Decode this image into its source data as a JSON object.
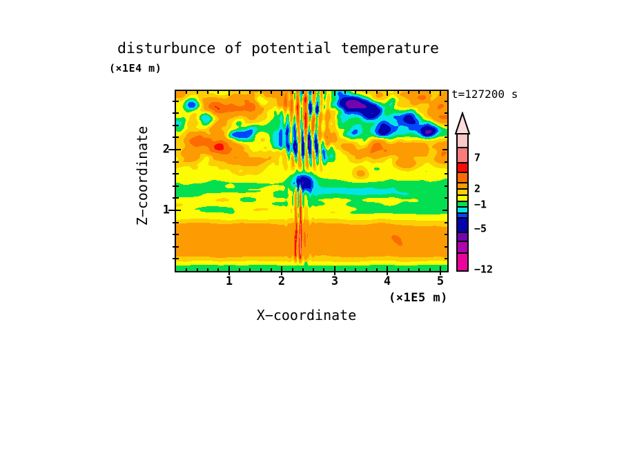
{
  "title": "disturbunce of potential temperature",
  "timestamp": "t=127200 s",
  "axes": {
    "x": {
      "label": "X−coordinate",
      "unit": "(×1E5 m)",
      "tick_labels": [
        "1",
        "2",
        "3",
        "4",
        "5"
      ]
    },
    "z": {
      "label": "Z−coordinate",
      "unit": "(×1E4 m)",
      "tick_labels": [
        "2",
        "1"
      ]
    }
  },
  "colorbar": {
    "labels": [
      "7",
      "2",
      "−1",
      "−5",
      "−12"
    ]
  },
  "chart_data": {
    "type": "heatmap",
    "variant": "filled-contour",
    "title": "disturbunce of potential temperature",
    "xlabel": "X−coordinate",
    "x_unit": "(×1E5 m)",
    "ylabel": "Z−coordinate",
    "y_unit": "(×1E4 m)",
    "time_label": "t=127200 s",
    "x_range": [
      0,
      5.13
    ],
    "z_range": [
      0,
      2.97
    ],
    "x_ticks": [
      1,
      2,
      3,
      4,
      5
    ],
    "z_ticks": [
      2,
      1
    ],
    "minor_tick_step": 0.2,
    "grid": false,
    "legend_position": "right",
    "contour_levels": [
      -12,
      -9,
      -7,
      -5,
      -3,
      -2,
      -1,
      0,
      1,
      2,
      4,
      5.5,
      7,
      10,
      13
    ],
    "palette": [
      "#eb049c",
      "#b004ae",
      "#7404ad",
      "#0404ae",
      "#0347fc",
      "#04e4e4",
      "#04df52",
      "#fcfc04",
      "#fccf04",
      "#fd9b02",
      "#fd6c03",
      "#fc0a06",
      "#f87c7c",
      "#fbc8c8"
    ],
    "colorbar_labels": [
      "7",
      "2",
      "−1",
      "−5",
      "−12"
    ],
    "field_summary": "Disturbance field at t=127200 s: thin green strip along the surface; broad yellow-to-orange layer for Z=0.1-0.8 with dark-orange cores; green band with cyan streaks for Z=0.9-1.4; yellow band near Z=1.5; strongly turbulent upper region (Z>1.6) mixing yellow, green, cyan, orange, red and navy blobs with occasional purple cores; a narrow vertical disturbance plume near X=2.3 with red/orange streaks below and a navy/purple knot at Z=1.45.",
    "field_model": {
      "profile": [
        [
          0,
          -0.6
        ],
        [
          0.07,
          -0.55
        ],
        [
          0.13,
          0.6
        ],
        [
          0.25,
          1.8
        ],
        [
          0.42,
          2.8
        ],
        [
          0.6,
          3.0
        ],
        [
          0.78,
          1.9
        ],
        [
          0.88,
          0.6
        ],
        [
          0.98,
          -0.2
        ],
        [
          1.3,
          -0.55
        ],
        [
          1.45,
          -0.1
        ],
        [
          1.58,
          0.55
        ],
        [
          1.75,
          0.85
        ],
        [
          2.97,
          0.85
        ]
      ],
      "wiggle": {
        "amp": 0.35,
        "sx": 2.3,
        "sz": 2.7,
        "seed": 91
      },
      "lower": {
        "z0": 0.14,
        "z1": 0.32,
        "z2": 0.58,
        "z3": 0.85,
        "base": 0.5,
        "amp": 1.1,
        "sx": 1.0,
        "sz": 2.2,
        "seed": 11,
        "left_boost": 0.45
      },
      "mid": {
        "z0": 0.88,
        "z1": 1.0,
        "z2": 1.32,
        "z3": 1.5,
        "amp": -1.5,
        "sx": 1.4,
        "sz": 6.0,
        "seed": 23,
        "cyan_band": {
          "z": 1.33,
          "w": 0.1,
          "amp": -0.85,
          "x0": 2.3,
          "x1": 3.2
        }
      },
      "turb": {
        "amp": 4.6,
        "z0": 1.38,
        "z1": 2.02,
        "w1": 0.72,
        "s1x": 1.5,
        "s1zx": 0.8,
        "s1z": 2.4,
        "s1xz": 0.3,
        "seed1": 31,
        "w2": 0.5,
        "s2x": 3.1,
        "s2zx": 1.5,
        "s2z": 4.8,
        "seed2": 47
      },
      "plume": {
        "upper": {
          "xc": 2.45,
          "w": 0.34,
          "freq": 46,
          "amp": 3.4,
          "z0": 1.55,
          "z1": 1.95,
          "jit": 2.6,
          "jsx": 2.2,
          "jsz": 1.3,
          "seed": 53
        },
        "core": {
          "xc": 2.33,
          "w": 0.11,
          "freq": 72,
          "base": 2.4,
          "amp": 2.2,
          "z0": 0.08,
          "z1": 0.25,
          "z2": 1.25,
          "z3": 1.6,
          "jit": 2.0,
          "jsx": 4.0,
          "jsz": 2.8,
          "seed": 61
        },
        "mid": {
          "xc": 2.36,
          "w": 0.2,
          "freq": 55,
          "amp": 1.0,
          "phase": 1.3
        },
        "knot": {
          "x": 2.4,
          "z": 1.45,
          "amp": -5.0,
          "rx": 0.19,
          "rz": 0.15
        }
      },
      "blobs": [
        [
          0.3,
          2.74,
          -4.6,
          0.16,
          0.13
        ],
        [
          0.58,
          2.5,
          -4.0,
          0.14,
          0.12
        ],
        [
          1.18,
          2.24,
          -3.0,
          0.22,
          0.1
        ],
        [
          1.62,
          2.8,
          -3.2,
          0.12,
          0.1
        ],
        [
          1.95,
          2.1,
          -3.8,
          0.16,
          0.12
        ],
        [
          2.2,
          2.03,
          -2.8,
          0.12,
          0.1
        ],
        [
          2.62,
          2.65,
          -3.4,
          0.13,
          0.16
        ],
        [
          3.38,
          2.76,
          -5.8,
          0.26,
          0.14
        ],
        [
          3.72,
          2.6,
          -4.6,
          0.18,
          0.14
        ],
        [
          3.92,
          2.32,
          -4.2,
          0.16,
          0.12
        ],
        [
          4.42,
          2.52,
          -4.2,
          0.18,
          0.12
        ],
        [
          4.78,
          2.3,
          -3.6,
          0.14,
          0.11
        ],
        [
          4.1,
          2.82,
          -2.6,
          0.12,
          0.1
        ],
        [
          0.95,
          2.7,
          3.4,
          0.3,
          0.14
        ],
        [
          1.12,
          2.68,
          1.6,
          0.12,
          0.09
        ],
        [
          1.55,
          2.73,
          3.2,
          0.28,
          0.13
        ],
        [
          2.05,
          2.8,
          2.6,
          0.14,
          0.12
        ],
        [
          0.38,
          2.16,
          2.8,
          0.18,
          0.12
        ],
        [
          0.8,
          2.04,
          2.6,
          0.2,
          0.12
        ],
        [
          1.6,
          1.83,
          2.2,
          0.22,
          0.1
        ],
        [
          2.9,
          2.16,
          2.6,
          0.18,
          0.12
        ],
        [
          3.3,
          1.96,
          2.2,
          0.16,
          0.1
        ],
        [
          3.78,
          2.04,
          3.4,
          0.16,
          0.12
        ],
        [
          4.35,
          1.78,
          2.4,
          0.18,
          0.1
        ],
        [
          4.98,
          2.72,
          3.2,
          0.18,
          0.14
        ],
        [
          4.62,
          2.9,
          2.4,
          0.16,
          0.1
        ],
        [
          5.05,
          1.95,
          2.2,
          0.12,
          0.1
        ],
        [
          3.5,
          1.6,
          2.0,
          0.16,
          0.09
        ]
      ],
      "bottom_strip": {
        "base": 0.05,
        "amp": 0.06,
        "sx": 7.5,
        "seed": 71,
        "value": -0.35,
        "plume_amp": 0.18,
        "plume_w": 0.25,
        "psx": 11,
        "pseed": 77
      }
    }
  }
}
